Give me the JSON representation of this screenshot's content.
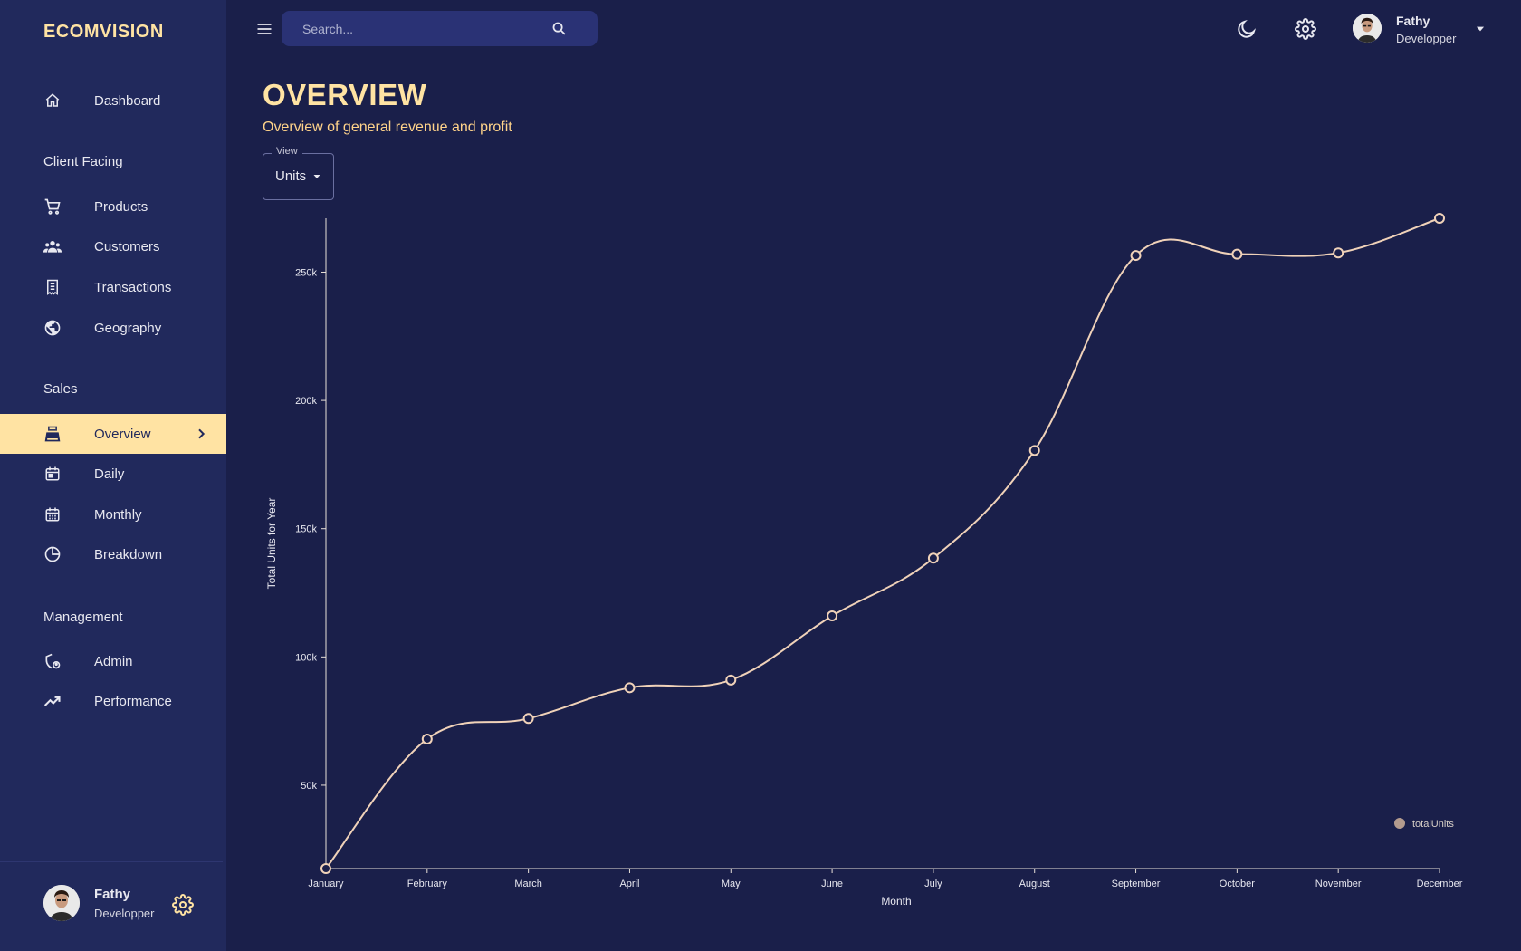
{
  "app": {
    "brand": "ECOMVISION"
  },
  "sidebar": {
    "dashboard": "Dashboard",
    "section_client": "Client Facing",
    "products": "Products",
    "customers": "Customers",
    "transactions": "Transactions",
    "geography": "Geography",
    "section_sales": "Sales",
    "overview": "Overview",
    "daily": "Daily",
    "monthly": "Monthly",
    "breakdown": "Breakdown",
    "section_management": "Management",
    "admin": "Admin",
    "performance": "Performance",
    "user": {
      "name": "Fathy",
      "role": "Developper"
    },
    "active_color": "#ffe3a3"
  },
  "topbar": {
    "search_placeholder": "Search...",
    "user": {
      "name": "Fathy",
      "role": "Developper"
    }
  },
  "header": {
    "title": "OVERVIEW",
    "subtitle": "Overview of general revenue and profit"
  },
  "view_select": {
    "legend": "View",
    "value": "Units"
  },
  "chart_data": {
    "type": "line",
    "categories": [
      "January",
      "February",
      "March",
      "April",
      "May",
      "June",
      "July",
      "August",
      "September",
      "October",
      "November",
      "December"
    ],
    "series": [
      {
        "name": "totalUnits",
        "values": [
          17500,
          68000,
          76000,
          88000,
          91000,
          116000,
          138500,
          180500,
          256500,
          257000,
          257500,
          271000
        ]
      }
    ],
    "xlabel": "Month",
    "ylabel": "Total Units for Year",
    "yticks": [
      "50k",
      "100k",
      "150k",
      "200k",
      "250k"
    ],
    "ylim": [
      17500,
      271000
    ],
    "legend_position": "bottom-right",
    "line_color": "#f0d2b9",
    "legend_color": "#b39b8e",
    "axis_color": "#e8e0d8"
  }
}
